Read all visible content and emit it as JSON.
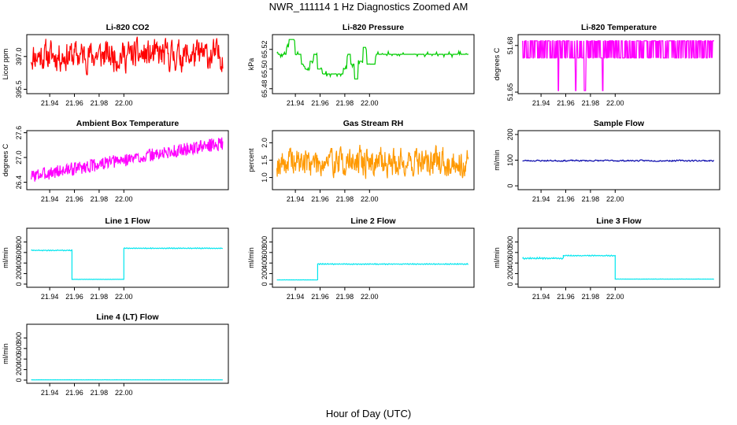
{
  "page_title": "NWR_111114  1 Hz Diagnostics Zoomed AM",
  "x_axis_title": "Hour of Day (UTC)",
  "colors": {
    "red": "#ff0000",
    "green": "#00cc00",
    "magenta": "#ff00ff",
    "orange": "#ff9900",
    "navy": "#0000aa",
    "cyan": "#00e5ee"
  },
  "chart_data": [
    {
      "id": "li820-co2",
      "type": "line",
      "title": "Li-820 CO2",
      "ylabel": "Licor ppm",
      "xlim": [
        21.924,
        22.082
      ],
      "ylim": [
        395.3,
        398.0
      ],
      "yticks": [
        "395.5",
        "397.0"
      ],
      "xticks": [
        "21.94",
        "21.96",
        "21.98",
        "22.00"
      ],
      "color": "#ff0000",
      "series": {
        "kind": "noise",
        "x_range": [
          21.925,
          22.08
        ],
        "center": 397.05,
        "amplitude": 0.75,
        "points": 420,
        "seed": 11
      }
    },
    {
      "id": "li820-pressure",
      "type": "line",
      "title": "Li-820 Pressure",
      "ylabel": "kPa",
      "xlim": [
        21.924,
        22.082
      ],
      "ylim": [
        65.475,
        65.535
      ],
      "yticks": [
        "65.48",
        "65.50",
        "65.52"
      ],
      "xticks": [
        "21.94",
        "21.96",
        "21.98",
        "22.00"
      ],
      "color": "#00cc00",
      "series": {
        "kind": "step",
        "x": [
          21.925,
          21.93,
          21.933,
          21.935,
          21.94,
          21.945,
          21.948,
          21.952,
          21.955,
          21.958,
          21.962,
          21.966,
          21.97,
          21.975,
          21.979,
          21.982,
          21.985,
          21.988,
          21.991,
          21.995,
          21.998,
          22.002,
          22.005,
          22.08
        ],
        "y": [
          65.515,
          65.515,
          65.522,
          65.53,
          65.515,
          65.505,
          65.5,
          65.508,
          65.515,
          65.5,
          65.495,
          65.495,
          65.495,
          65.495,
          65.5,
          65.515,
          65.505,
          65.49,
          65.508,
          65.522,
          65.505,
          65.505,
          65.515,
          65.515
        ],
        "jitter": 0.003,
        "seed": 5
      }
    },
    {
      "id": "li820-temperature",
      "type": "line",
      "title": "Li-820 Temperature",
      "ylabel": "degrees C",
      "xlim": [
        21.924,
        22.082
      ],
      "ylim": [
        51.649,
        51.687
      ],
      "yticks": [
        "51.65",
        "51.68"
      ],
      "xticks": [
        "21.94",
        "21.96",
        "21.98",
        "22.00"
      ],
      "color": "#ff00ff",
      "series": {
        "kind": "binary",
        "x_range": [
          21.925,
          22.08
        ],
        "low": 51.672,
        "high": 51.683,
        "dips": [
          21.954,
          21.968,
          21.975,
          21.976,
          21.99
        ],
        "dip_value": 51.651,
        "points": 420,
        "seed": 7
      }
    },
    {
      "id": "ambient-box-temperature",
      "type": "line",
      "title": "Ambient Box Temperature",
      "ylabel": "degrees C",
      "xlim": [
        21.924,
        22.082
      ],
      "ylim": [
        26.22,
        27.65
      ],
      "yticks": [
        "26.4",
        "27.0",
        "27.6"
      ],
      "xticks": [
        "21.94",
        "21.96",
        "21.98",
        "22.00"
      ],
      "color": "#ff00ff",
      "series": {
        "kind": "trend",
        "x_range": [
          21.925,
          22.08
        ],
        "start": 26.55,
        "end": 27.35,
        "amplitude": 0.16,
        "points": 420,
        "seed": 3
      }
    },
    {
      "id": "gas-stream-rh",
      "type": "line",
      "title": "Gas Stream RH",
      "ylabel": "percent",
      "xlim": [
        21.924,
        22.082
      ],
      "ylim": [
        0.65,
        2.35
      ],
      "yticks": [
        "1.0",
        "1.5",
        "2.0"
      ],
      "xticks": [
        "21.94",
        "21.96",
        "21.98",
        "22.00"
      ],
      "color": "#ff9900",
      "series": {
        "kind": "noise",
        "x_range": [
          21.925,
          22.08
        ],
        "center": 1.45,
        "amplitude": 0.45,
        "points": 460,
        "seed": 19
      }
    },
    {
      "id": "sample-flow",
      "type": "line",
      "title": "Sample Flow",
      "ylabel": "ml/min",
      "xlim": [
        21.924,
        22.082
      ],
      "ylim": [
        -15,
        215
      ],
      "yticks": [
        "0",
        "100",
        "200"
      ],
      "xticks": [
        "21.94",
        "21.96",
        "21.98",
        "22.00"
      ],
      "color": "#0000aa",
      "series": {
        "kind": "noise",
        "x_range": [
          21.925,
          22.08
        ],
        "center": 98,
        "amplitude": 3,
        "points": 300,
        "seed": 23
      }
    },
    {
      "id": "line-1-flow",
      "type": "line",
      "title": "Line 1 Flow",
      "ylabel": "ml/min",
      "xlim": [
        21.924,
        22.082
      ],
      "ylim": [
        -60,
        1060
      ],
      "yticks": [
        "0",
        "200",
        "400",
        "600",
        "800"
      ],
      "xticks": [
        "21.94",
        "21.96",
        "21.98",
        "22.00"
      ],
      "color": "#00e5ee",
      "series": {
        "kind": "segments",
        "segments": [
          [
            21.925,
            21.958,
            640,
            10
          ],
          [
            21.958,
            22.0,
            90,
            3
          ],
          [
            22.0,
            22.08,
            680,
            10
          ]
        ],
        "points": 300,
        "seed": 29
      }
    },
    {
      "id": "line-2-flow",
      "type": "line",
      "title": "Line 2 Flow",
      "ylabel": "ml/min",
      "xlim": [
        21.924,
        22.082
      ],
      "ylim": [
        -60,
        1060
      ],
      "yticks": [
        "0",
        "200",
        "400",
        "600",
        "800"
      ],
      "xticks": [
        "21.94",
        "21.96",
        "21.98",
        "22.00"
      ],
      "color": "#00e5ee",
      "series": {
        "kind": "segments",
        "segments": [
          [
            21.925,
            21.958,
            80,
            3
          ],
          [
            21.958,
            22.08,
            380,
            12
          ]
        ],
        "points": 300,
        "seed": 31
      }
    },
    {
      "id": "line-3-flow",
      "type": "line",
      "title": "Line 3 Flow",
      "ylabel": "ml/min",
      "xlim": [
        21.924,
        22.082
      ],
      "ylim": [
        -60,
        1060
      ],
      "yticks": [
        "0",
        "200",
        "400",
        "600",
        "800"
      ],
      "xticks": [
        "21.94",
        "21.96",
        "21.98",
        "22.00"
      ],
      "color": "#00e5ee",
      "series": {
        "kind": "segments",
        "segments": [
          [
            21.925,
            21.958,
            490,
            18
          ],
          [
            21.958,
            22.0,
            540,
            12
          ],
          [
            22.0,
            22.08,
            95,
            3
          ]
        ],
        "points": 300,
        "seed": 37
      }
    },
    {
      "id": "line-4-lt-flow",
      "type": "line",
      "title": "Line 4 (LT) Flow",
      "ylabel": "ml/min",
      "xlim": [
        21.924,
        22.082
      ],
      "ylim": [
        -60,
        1060
      ],
      "yticks": [
        "0",
        "200",
        "400",
        "600",
        "800"
      ],
      "xticks": [
        "21.94",
        "21.96",
        "21.98",
        "22.00"
      ],
      "color": "#00e5ee",
      "series": {
        "kind": "segments",
        "segments": [
          [
            21.925,
            22.08,
            5,
            2
          ]
        ],
        "points": 300,
        "seed": 41
      }
    }
  ]
}
